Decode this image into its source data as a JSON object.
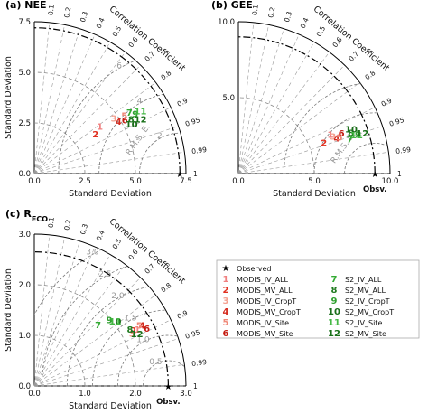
{
  "chart_data": [
    {
      "type": "scatter",
      "subtype": "taylor-diagram",
      "title": "(a) NEE",
      "xlabel": "Standard Deviation",
      "ylabel": "Standard Deviation",
      "arc_label": "Correlation Coefficient",
      "max": 7.5,
      "ref_std": 7.2,
      "ref_label": "",
      "axis_ticks": [
        "0.0",
        "2.5",
        "5.0",
        "7.5"
      ],
      "rms_label": "R.M.S. E.",
      "rms_contours": [
        2,
        4,
        6
      ],
      "rms_contour_labels": [
        "2",
        "4",
        "6"
      ],
      "points": [
        {
          "id": "1",
          "std": 4.0,
          "corr": 0.81
        },
        {
          "id": "2",
          "std": 3.6,
          "corr": 0.84
        },
        {
          "id": "3",
          "std": 4.8,
          "corr": 0.82
        },
        {
          "id": "4",
          "std": 4.9,
          "corr": 0.85
        },
        {
          "id": "5",
          "std": 5.3,
          "corr": 0.84
        },
        {
          "id": "6",
          "std": 5.2,
          "corr": 0.86
        },
        {
          "id": "7",
          "std": 5.6,
          "corr": 0.84
        },
        {
          "id": "8",
          "std": 5.5,
          "corr": 0.87
        },
        {
          "id": "9",
          "std": 5.8,
          "corr": 0.86
        },
        {
          "id": "10",
          "std": 5.4,
          "corr": 0.89
        },
        {
          "id": "11",
          "std": 6.1,
          "corr": 0.86
        },
        {
          "id": "12",
          "std": 5.9,
          "corr": 0.89
        }
      ]
    },
    {
      "type": "scatter",
      "subtype": "taylor-diagram",
      "title": "(b) GEE",
      "xlabel": "Standard Deviation",
      "ylabel": "",
      "arc_label": "Correlation Coefficient",
      "max": 10.0,
      "ref_std": 9.0,
      "ref_label": "Obsv.",
      "axis_ticks": [
        "0.0",
        "5.0",
        "10.0"
      ],
      "rms_label": "R.M.S. E.",
      "rms_contours": [
        2,
        4,
        6
      ],
      "rms_contour_labels": [],
      "points": [
        {
          "id": "1",
          "std": 6.6,
          "corr": 0.92
        },
        {
          "id": "2",
          "std": 6.0,
          "corr": 0.94
        },
        {
          "id": "3",
          "std": 6.7,
          "corr": 0.93
        },
        {
          "id": "4",
          "std": 6.9,
          "corr": 0.94
        },
        {
          "id": "5",
          "std": 7.1,
          "corr": 0.94
        },
        {
          "id": "6",
          "std": 7.3,
          "corr": 0.93
        },
        {
          "id": "7",
          "std": 7.7,
          "corr": 0.955
        },
        {
          "id": "8",
          "std": 7.9,
          "corr": 0.94
        },
        {
          "id": "9",
          "std": 8.3,
          "corr": 0.95
        },
        {
          "id": "10",
          "std": 8.0,
          "corr": 0.93
        },
        {
          "id": "11",
          "std": 8.2,
          "corr": 0.95
        },
        {
          "id": "12",
          "std": 8.6,
          "corr": 0.95
        }
      ]
    },
    {
      "type": "scatter",
      "subtype": "taylor-diagram",
      "title": "(c) R",
      "title_sub": "ECO",
      "xlabel": "Standard Deviation",
      "ylabel": "Standard Deviation",
      "arc_label": "Correlation Coefficient",
      "max": 3.0,
      "ref_std": 2.65,
      "ref_label": "Obsv.",
      "axis_ticks": [
        "0.0",
        "1.0",
        "2.0",
        "3.0"
      ],
      "rms_label": "",
      "rms_contours": [
        0.5,
        1.0,
        1.5,
        2.0,
        2.5,
        3.0
      ],
      "rms_contour_labels": [
        "0.5",
        "1.0",
        "1.5",
        "2.0",
        "2.5",
        "3.0"
      ],
      "points": [
        {
          "id": "1",
          "std": 2.33,
          "corr": 0.875
        },
        {
          "id": "2",
          "std": 2.25,
          "corr": 0.87
        },
        {
          "id": "3",
          "std": 2.2,
          "corr": 0.88
        },
        {
          "id": "4",
          "std": 2.45,
          "corr": 0.87
        },
        {
          "id": "5",
          "std": 2.4,
          "corr": 0.865
        },
        {
          "id": "6",
          "std": 2.5,
          "corr": 0.89
        },
        {
          "id": "7",
          "std": 1.75,
          "corr": 0.72
        },
        {
          "id": "8",
          "std": 2.2,
          "corr": 0.86
        },
        {
          "id": "9",
          "std": 1.98,
          "corr": 0.75
        },
        {
          "id": "10",
          "std": 2.05,
          "corr": 0.78
        },
        {
          "id": "11",
          "std": 2.05,
          "corr": 0.78
        },
        {
          "id": "12",
          "std": 2.28,
          "corr": 0.89
        }
      ]
    }
  ],
  "corr_ticks": [
    "0.1",
    "0.2",
    "0.3",
    "0.4",
    "0.5",
    "0.6",
    "0.7",
    "0.8",
    "0.9",
    "0.95",
    "0.99",
    "1"
  ],
  "legend": [
    {
      "id": "★",
      "label": "Observed",
      "color": "#000000"
    },
    {
      "id": "1",
      "label": "MODIS_IV_ALL",
      "color": "#f08080"
    },
    {
      "id": "2",
      "label": "MODIS_MV_ALL",
      "color": "#e03020"
    },
    {
      "id": "3",
      "label": "MODIS_IV_CropT",
      "color": "#f4a090"
    },
    {
      "id": "4",
      "label": "MODIS_MV_CropT",
      "color": "#d42a1e"
    },
    {
      "id": "5",
      "label": "MODIS_IV_Site",
      "color": "#f08878"
    },
    {
      "id": "6",
      "label": "MODIS_MV_Site",
      "color": "#c41a10"
    },
    {
      "id": "7",
      "label": "S2_IV_ALL",
      "color": "#33aa33"
    },
    {
      "id": "8",
      "label": "S2_MV_ALL",
      "color": "#1f7a1f"
    },
    {
      "id": "9",
      "label": "S2_IV_CropT",
      "color": "#2ea02e"
    },
    {
      "id": "10",
      "label": "S2_MV_CropT",
      "color": "#1a6e1a"
    },
    {
      "id": "11",
      "label": "S2_IV_Site",
      "color": "#44b844"
    },
    {
      "id": "12",
      "label": "S2_MV_Site",
      "color": "#187018"
    }
  ]
}
